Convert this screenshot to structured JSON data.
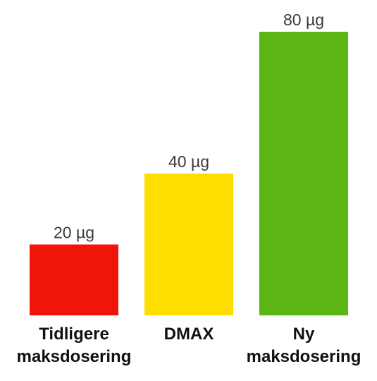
{
  "chart_data": {
    "type": "bar",
    "categories": [
      "Tidligere maksdosering",
      "DMAX",
      "Ny maksdosering"
    ],
    "values": [
      20,
      40,
      80
    ],
    "value_labels": [
      "20 µg",
      "40 µg",
      "80 µg"
    ],
    "colors": [
      "#ef1509",
      "#fedd00",
      "#5bb514"
    ]
  }
}
